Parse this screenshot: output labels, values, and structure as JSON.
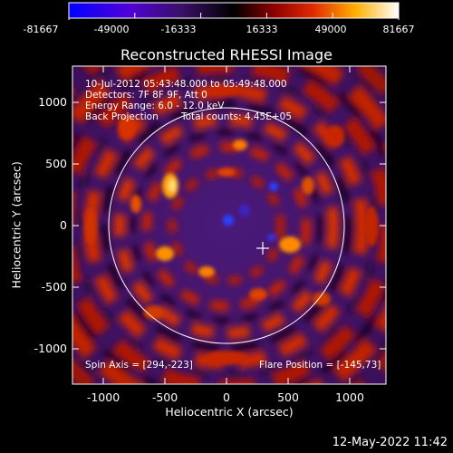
{
  "colorbar": {
    "ticks": [
      "-81667",
      "-49000",
      "-16333",
      "16333",
      "49000",
      "81667"
    ],
    "colors": [
      "#0000ff",
      "#5c00c0",
      "#3a1070",
      "#000000",
      "#8a0000",
      "#e02000",
      "#ffb000",
      "#ffffff"
    ]
  },
  "title": "Reconstructed RHESSI Image",
  "info": {
    "line1": "10-Jul-2012 05:43:48.000 to 05:49:48.000",
    "line2": "Detectors: 7F 8F 9F, Att 0",
    "line3": "Energy Range: 6.0 - 12.0 keV",
    "line4a": "Back Projection",
    "line4b": "Total counts: 4.45E+05"
  },
  "footer": {
    "spin_axis": "Spin Axis = [294,-223]",
    "flare_position": "Flare Position = [-145,73]"
  },
  "axes": {
    "xlabel": "Heliocentric X (arcsec)",
    "ylabel": "Heliocentric Y (arcsec)",
    "xticks": [
      "-1000",
      "-500",
      "0",
      "500",
      "1000"
    ],
    "yticks": [
      "1000",
      "500",
      "0",
      "-500",
      "-1000"
    ],
    "xrange": [
      -1250,
      1300
    ],
    "yrange": [
      -1270,
      1290
    ]
  },
  "timestamp": "12-May-2022 11:42"
}
